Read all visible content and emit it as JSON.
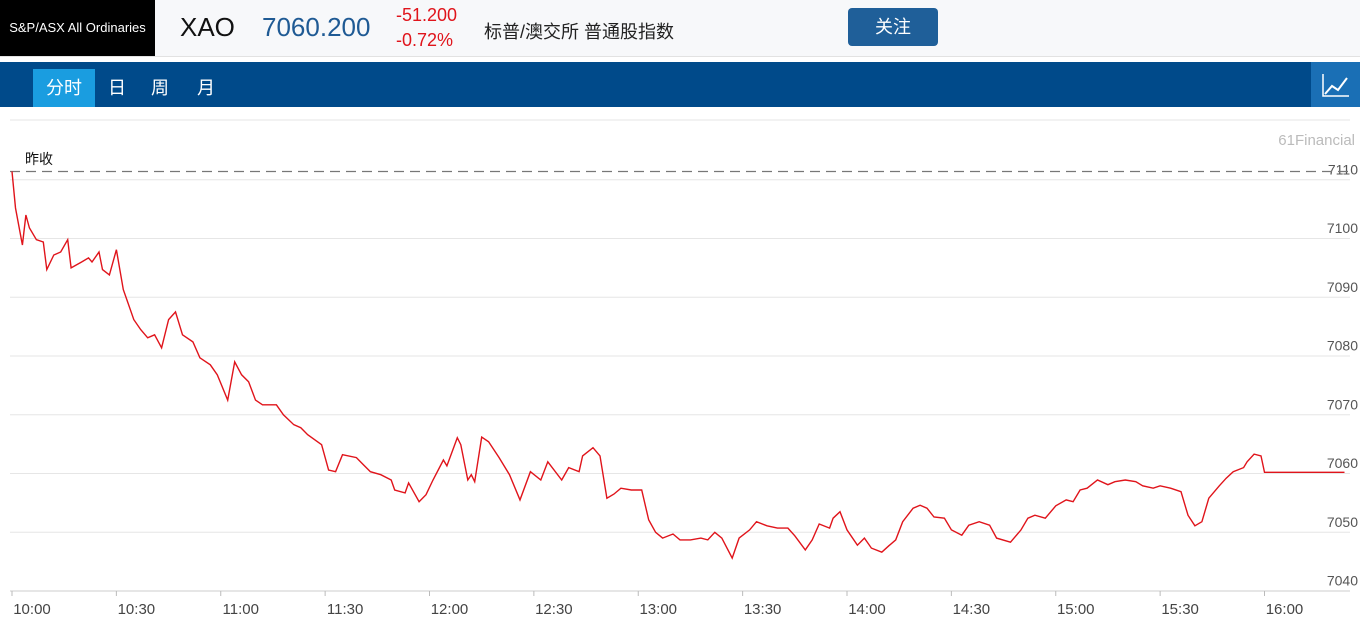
{
  "header": {
    "name": "S&P/ASX All Ordinaries",
    "symbol": "XAO",
    "price": "7060.200",
    "change": "-51.200",
    "change_pct": "-0.72%",
    "full_name": "标普/澳交所 普通股指数",
    "follow_button": "关注"
  },
  "tabs": [
    "分时",
    "日",
    "周",
    "月"
  ],
  "chart_data": {
    "type": "line",
    "brand": "61Financial",
    "color": "#e0141b",
    "prev_close": 7111.4,
    "prev_close_label": "昨收",
    "x": [
      600,
      601,
      603,
      604,
      605,
      607,
      609,
      610,
      612,
      614,
      616,
      617,
      620,
      622,
      623,
      625,
      626,
      628,
      630,
      632,
      635,
      637,
      639,
      641,
      643,
      645,
      647,
      649,
      652,
      654,
      657,
      659,
      662,
      664,
      666,
      668,
      670,
      672,
      676,
      678,
      681,
      683,
      685,
      689,
      691,
      693,
      695,
      699,
      701,
      703,
      706,
      709,
      710,
      713,
      714,
      717,
      719,
      721,
      724,
      725,
      728,
      729,
      731,
      732,
      733,
      735,
      737,
      740,
      743,
      746,
      749,
      752,
      754,
      758,
      760,
      763,
      764,
      767,
      769,
      771,
      773,
      775,
      778,
      781,
      783,
      785,
      787,
      790,
      792,
      795,
      798,
      800,
      802,
      804,
      807,
      809,
      812,
      814,
      817,
      820,
      823,
      825,
      828,
      830,
      832,
      835,
      836,
      838,
      840,
      843,
      845,
      847,
      850,
      852,
      854,
      856,
      859,
      861,
      863,
      865,
      868,
      870,
      873,
      875,
      878,
      881,
      883,
      887,
      890,
      892,
      894,
      897,
      900,
      903,
      905,
      907,
      909,
      912,
      915,
      917,
      920,
      923,
      925,
      928,
      930,
      933,
      936,
      938,
      940,
      942,
      944,
      947,
      949,
      951,
      954,
      955,
      957,
      959,
      960,
      983
    ],
    "values": [
      7111.4,
      7105.2,
      7098.9,
      7104.0,
      7101.8,
      7099.8,
      7099.4,
      7094.7,
      7097.2,
      7097.7,
      7099.8,
      7095.0,
      7096.0,
      7096.7,
      7096.0,
      7097.7,
      7094.7,
      7093.8,
      7098.1,
      7091.3,
      7086.2,
      7084.5,
      7083.1,
      7083.6,
      7081.4,
      7086.2,
      7087.5,
      7083.6,
      7082.4,
      7079.7,
      7078.5,
      7076.8,
      7072.5,
      7079.0,
      7076.8,
      7075.6,
      7072.5,
      7071.7,
      7071.7,
      7070.0,
      7068.3,
      7067.8,
      7066.6,
      7064.9,
      7060.6,
      7060.3,
      7063.2,
      7062.7,
      7061.5,
      7060.3,
      7059.8,
      7058.9,
      7057.2,
      7056.7,
      7058.4,
      7055.2,
      7056.4,
      7058.9,
      7062.3,
      7061.3,
      7066.1,
      7064.9,
      7058.9,
      7059.8,
      7058.6,
      7066.2,
      7065.4,
      7062.7,
      7059.8,
      7055.5,
      7060.3,
      7058.9,
      7062.0,
      7058.9,
      7061.0,
      7060.3,
      7063.0,
      7064.4,
      7063.0,
      7055.8,
      7056.5,
      7057.5,
      7057.2,
      7057.2,
      7052.1,
      7050.0,
      7049.0,
      7049.7,
      7048.7,
      7048.7,
      7049.0,
      7048.7,
      7050.0,
      7049.0,
      7045.6,
      7049.0,
      7050.4,
      7051.8,
      7051.1,
      7050.7,
      7050.7,
      7049.4,
      7047.0,
      7048.7,
      7051.4,
      7050.7,
      7052.4,
      7053.5,
      7050.4,
      7047.8,
      7049.0,
      7047.3,
      7046.6,
      7047.7,
      7048.7,
      7051.8,
      7054.1,
      7054.6,
      7054.1,
      7052.6,
      7052.4,
      7050.4,
      7049.5,
      7051.2,
      7051.8,
      7051.2,
      7049.0,
      7048.3,
      7050.4,
      7052.4,
      7052.9,
      7052.4,
      7054.5,
      7055.5,
      7055.2,
      7057.2,
      7057.5,
      7058.9,
      7058.1,
      7058.6,
      7058.9,
      7058.6,
      7057.9,
      7057.5,
      7057.9,
      7057.5,
      7056.9,
      7052.9,
      7051.1,
      7051.8,
      7055.8,
      7057.9,
      7059.2,
      7060.3,
      7061.0,
      7062.0,
      7063.3,
      7063.0,
      7060.2,
      7060.2
    ],
    "xlim": [
      600,
      984
    ],
    "ylim": [
      7040,
      7120
    ],
    "xticks": [
      {
        "value": 600,
        "label": "10:00"
      },
      {
        "value": 630,
        "label": "10:30"
      },
      {
        "value": 660,
        "label": "11:00"
      },
      {
        "value": 690,
        "label": "11:30"
      },
      {
        "value": 720,
        "label": "12:00"
      },
      {
        "value": 750,
        "label": "12:30"
      },
      {
        "value": 780,
        "label": "13:00"
      },
      {
        "value": 810,
        "label": "13:30"
      },
      {
        "value": 840,
        "label": "14:00"
      },
      {
        "value": 870,
        "label": "14:30"
      },
      {
        "value": 900,
        "label": "15:00"
      },
      {
        "value": 930,
        "label": "15:30"
      },
      {
        "value": 960,
        "label": "16:00"
      }
    ],
    "yticks": [
      7040,
      7050,
      7060,
      7070,
      7080,
      7090,
      7100,
      7110
    ],
    "grid": true
  }
}
